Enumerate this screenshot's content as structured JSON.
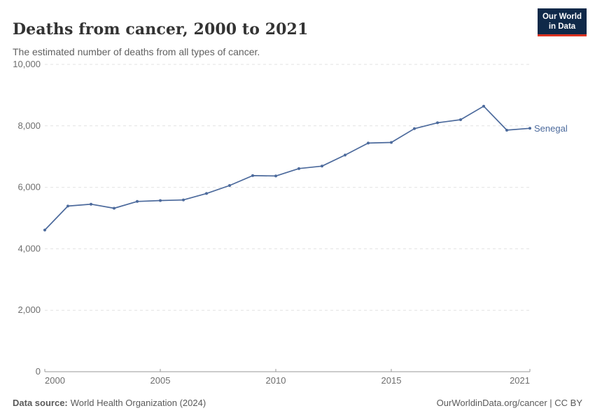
{
  "header": {
    "title": "Deaths from cancer, 2000 to 2021",
    "subtitle": "The estimated number of deaths from all types of cancer.",
    "logo": {
      "line1": "Our World",
      "line2": "in Data"
    }
  },
  "footer": {
    "source_label": "Data source:",
    "source_text": "World Health Organization (2024)",
    "right_text": "OurWorldinData.org/cancer | CC BY"
  },
  "colors": {
    "line": "#4c6a9c",
    "grid": "#e2e2e2",
    "axis": "#999999",
    "tick_text": "#6e6e6e",
    "title_text": "#333333",
    "logo_bg": "#0f2949",
    "logo_red": "#dc3220"
  },
  "chart_data": {
    "type": "line",
    "title": "Deaths from cancer, 2000 to 2021",
    "subtitle": "The estimated number of deaths from all types of cancer.",
    "entity_label": "Senegal",
    "x": [
      2000,
      2001,
      2002,
      2003,
      2004,
      2005,
      2006,
      2007,
      2008,
      2009,
      2010,
      2011,
      2012,
      2013,
      2014,
      2015,
      2016,
      2017,
      2018,
      2019,
      2020,
      2021
    ],
    "series": [
      {
        "name": "Senegal",
        "color": "#4c6a9c",
        "values": [
          4610,
          5390,
          5450,
          5320,
          5540,
          5570,
          5590,
          5800,
          6060,
          6380,
          6370,
          6610,
          6690,
          7050,
          7440,
          7460,
          7910,
          8100,
          8200,
          8640,
          7860,
          7920
        ]
      }
    ],
    "ylim": [
      0,
      10000
    ],
    "yticks": [
      0,
      2000,
      4000,
      6000,
      8000,
      10000
    ],
    "ytick_labels": [
      "0",
      "2,000",
      "4,000",
      "6,000",
      "8,000",
      "10,000"
    ],
    "xticks": [
      2000,
      2005,
      2010,
      2015,
      2021
    ],
    "xtick_labels": [
      "2000",
      "2005",
      "2010",
      "2015",
      "2021"
    ],
    "grid": "horizontal-dashed",
    "legend_position": "end-of-line-label",
    "xlabel": "",
    "ylabel": ""
  }
}
